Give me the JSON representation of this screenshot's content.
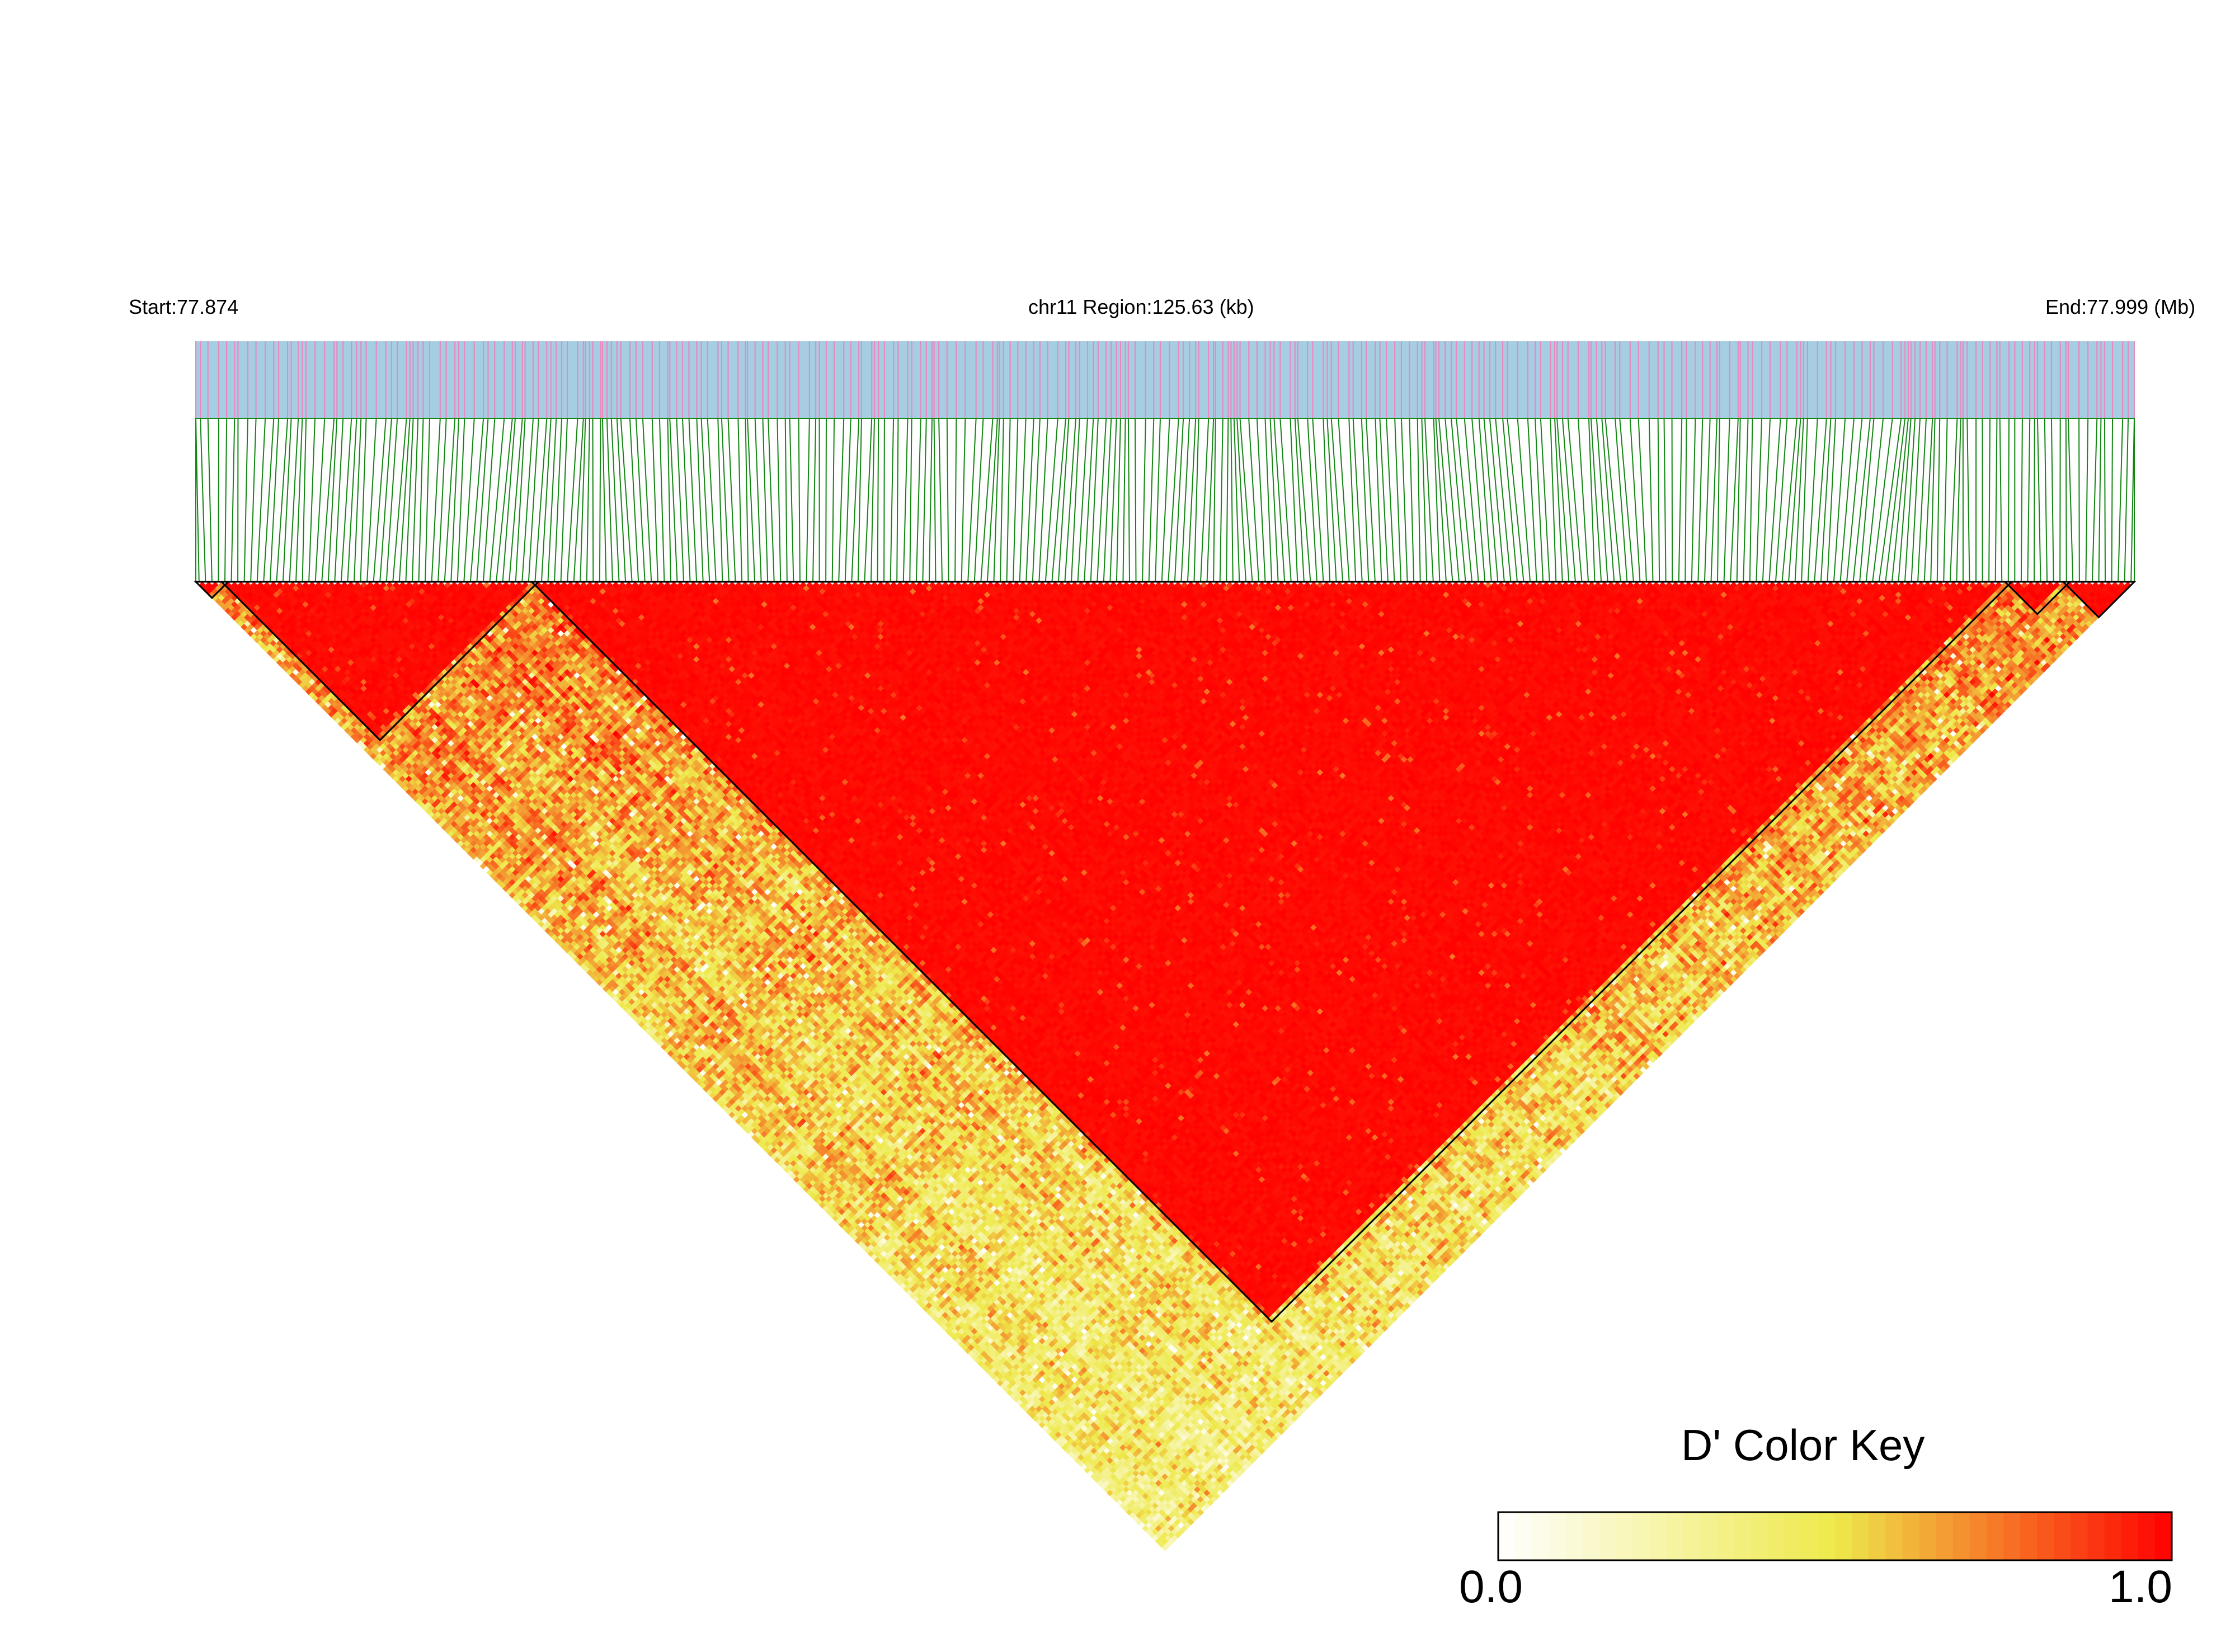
{
  "header": {
    "start_label": "Start:77.874",
    "region_label": "chr11 Region:125.63 (kb)",
    "end_label": "End:77.999 (Mb)"
  },
  "colors": {
    "snp_track_bg": "#a6cee3",
    "snp_tick": "#e889c0",
    "connector": "#138613",
    "low": "#ffffff",
    "mid": "#eee94b",
    "high": "#ff0000"
  },
  "color_key": {
    "title": "D' Color Key",
    "min_label": "0.0",
    "max_label": "1.0",
    "bins": 40
  },
  "chart_data": {
    "type": "heatmap",
    "title": "",
    "chromosome": "chr11",
    "start_mb": 77.874,
    "end_mb": 77.999,
    "region_kb": 125.63,
    "metric": "D'",
    "value_range": [
      0.0,
      1.0
    ],
    "snp_count": 300,
    "blocks_snp_index": [
      {
        "start": 0,
        "end": 4
      },
      {
        "start": 4,
        "end": 52
      },
      {
        "start": 52,
        "end": 280
      },
      {
        "start": 280,
        "end": 289
      },
      {
        "start": 289,
        "end": 299
      }
    ]
  }
}
